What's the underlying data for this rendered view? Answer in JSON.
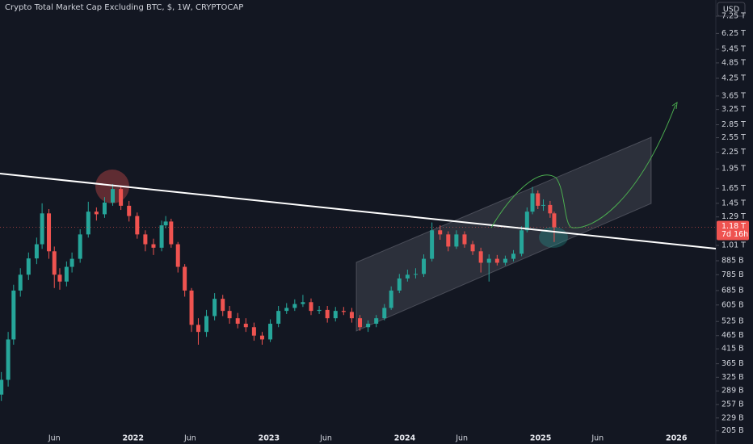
{
  "chart_data": {
    "type": "candlestick",
    "title": "Crypto Total Market Cap Excluding BTC, $, 1W, CRYPTOCAP",
    "currency": "USD",
    "log_scale": true,
    "grid": false,
    "up_color": "#26a69a",
    "down_color": "#ef5350",
    "xlim": [
      2021.02,
      2026.29
    ],
    "xticks": [
      {
        "value": 2021.42,
        "label": "Jun"
      },
      2022,
      {
        "value": 2022.42,
        "label": "Jun"
      },
      2023,
      {
        "value": 2023.42,
        "label": "Jun"
      },
      2024,
      {
        "value": 2024.42,
        "label": "Jun"
      },
      2025,
      {
        "value": 2025.42,
        "label": "Jun"
      },
      2026
    ],
    "ylim": [
      199,
      8330
    ],
    "yticks": [
      {
        "value": 7250,
        "label": "7.25 T"
      },
      {
        "value": 6250,
        "label": "6.25 T"
      },
      {
        "value": 5450,
        "label": "5.45 T"
      },
      {
        "value": 4850,
        "label": "4.85 T"
      },
      {
        "value": 4250,
        "label": "4.25 T"
      },
      {
        "value": 3650,
        "label": "3.65 T"
      },
      {
        "value": 3250,
        "label": "3.25 T"
      },
      {
        "value": 2850,
        "label": "2.85 T"
      },
      {
        "value": 2550,
        "label": "2.55 T"
      },
      {
        "value": 2250,
        "label": "2.25 T"
      },
      {
        "value": 1950,
        "label": "1.95 T"
      },
      {
        "value": 1650,
        "label": "1.65 T"
      },
      {
        "value": 1450,
        "label": "1.45 T"
      },
      {
        "value": 1290,
        "label": "1.29 T"
      },
      {
        "value": 1010,
        "label": "1.01 T"
      },
      {
        "value": 885,
        "label": "885 B"
      },
      {
        "value": 785,
        "label": "785 B"
      },
      {
        "value": 685,
        "label": "685 B"
      },
      {
        "value": 605,
        "label": "605 B"
      },
      {
        "value": 525,
        "label": "525 B"
      },
      {
        "value": 465,
        "label": "465 B"
      },
      {
        "value": 415,
        "label": "415 B"
      },
      {
        "value": 365,
        "label": "365 B"
      },
      {
        "value": 325,
        "label": "325 B"
      },
      {
        "value": 289,
        "label": "289 B"
      },
      {
        "value": 257,
        "label": "257 B"
      },
      {
        "value": 229,
        "label": "229 B"
      },
      {
        "value": 205,
        "label": "205 B"
      }
    ],
    "x": [
      2021.03,
      2021.08,
      2021.12,
      2021.17,
      2021.23,
      2021.29,
      2021.33,
      2021.38,
      2021.42,
      2021.46,
      2021.51,
      2021.55,
      2021.61,
      2021.67,
      2021.73,
      2021.79,
      2021.85,
      2021.91,
      2021.97,
      2022.03,
      2022.09,
      2022.15,
      2022.21,
      2022.24,
      2022.28,
      2022.33,
      2022.38,
      2022.43,
      2022.48,
      2022.54,
      2022.6,
      2022.66,
      2022.71,
      2022.77,
      2022.83,
      2022.89,
      2022.95,
      2023.01,
      2023.07,
      2023.13,
      2023.19,
      2023.25,
      2023.31,
      2023.37,
      2023.43,
      2023.49,
      2023.55,
      2023.61,
      2023.67,
      2023.73,
      2023.79,
      2023.85,
      2023.9,
      2023.96,
      2024.02,
      2024.08,
      2024.14,
      2024.2,
      2024.26,
      2024.32,
      2024.38,
      2024.44,
      2024.5,
      2024.56,
      2024.62,
      2024.68,
      2024.74,
      2024.8,
      2024.86,
      2024.9,
      2024.94,
      2024.98,
      2025.02,
      2025.07,
      2025.1
    ],
    "open": [
      280,
      318,
      450,
      685,
      785,
      903,
      1020,
      1330,
      960,
      785,
      740,
      840,
      900,
      1110,
      1350,
      1320,
      1460,
      1640,
      1420,
      1300,
      1110,
      1020,
      990,
      1200,
      1240,
      1020,
      840,
      685,
      510,
      480,
      550,
      638,
      575,
      540,
      515,
      500,
      465,
      450,
      515,
      575,
      590,
      610,
      620,
      575,
      580,
      540,
      575,
      570,
      540,
      500,
      515,
      540,
      590,
      685,
      760,
      785,
      790,
      900,
      1150,
      1110,
      1000,
      1110,
      1020,
      960,
      870,
      900,
      870,
      900,
      940,
      1150,
      1350,
      1580,
      1420,
      1430,
      1330
    ],
    "high": [
      340,
      480,
      720,
      830,
      950,
      1080,
      1450,
      1380,
      1000,
      830,
      880,
      950,
      1160,
      1470,
      1400,
      1530,
      1710,
      1690,
      1480,
      1340,
      1150,
      1070,
      1250,
      1300,
      1270,
      1040,
      860,
      700,
      540,
      580,
      670,
      660,
      600,
      565,
      540,
      520,
      480,
      535,
      600,
      615,
      635,
      660,
      640,
      600,
      600,
      595,
      595,
      590,
      555,
      530,
      555,
      610,
      710,
      790,
      820,
      830,
      935,
      1230,
      1200,
      1140,
      1150,
      1140,
      1050,
      990,
      935,
      930,
      925,
      970,
      1190,
      1400,
      1670,
      1620,
      1500,
      1480,
      1350
    ],
    "low": [
      265,
      300,
      430,
      650,
      750,
      860,
      980,
      900,
      700,
      690,
      710,
      800,
      870,
      1080,
      1250,
      1280,
      1420,
      1370,
      1240,
      1070,
      960,
      930,
      960,
      1170,
      990,
      800,
      650,
      480,
      430,
      460,
      530,
      550,
      515,
      495,
      480,
      445,
      430,
      440,
      500,
      560,
      575,
      595,
      555,
      560,
      520,
      525,
      555,
      520,
      485,
      480,
      500,
      530,
      580,
      670,
      740,
      760,
      770,
      880,
      1060,
      960,
      980,
      990,
      930,
      800,
      740,
      850,
      850,
      880,
      920,
      1130,
      1320,
      1380,
      1360,
      1280,
      1040
    ],
    "close": [
      318,
      450,
      685,
      785,
      903,
      1020,
      1330,
      960,
      785,
      740,
      840,
      900,
      1110,
      1350,
      1320,
      1460,
      1640,
      1420,
      1300,
      1110,
      1020,
      990,
      1200,
      1240,
      1020,
      840,
      685,
      510,
      480,
      550,
      638,
      575,
      540,
      515,
      500,
      465,
      450,
      515,
      575,
      590,
      610,
      620,
      575,
      580,
      540,
      575,
      570,
      540,
      500,
      515,
      540,
      590,
      685,
      760,
      785,
      790,
      900,
      1150,
      1110,
      1000,
      1110,
      1020,
      960,
      870,
      900,
      870,
      900,
      940,
      1150,
      1350,
      1580,
      1420,
      1430,
      1330,
      1180
    ],
    "last_price": {
      "value": 1180,
      "label": "1.18 T"
    },
    "countdown": "7d 16h"
  }
}
